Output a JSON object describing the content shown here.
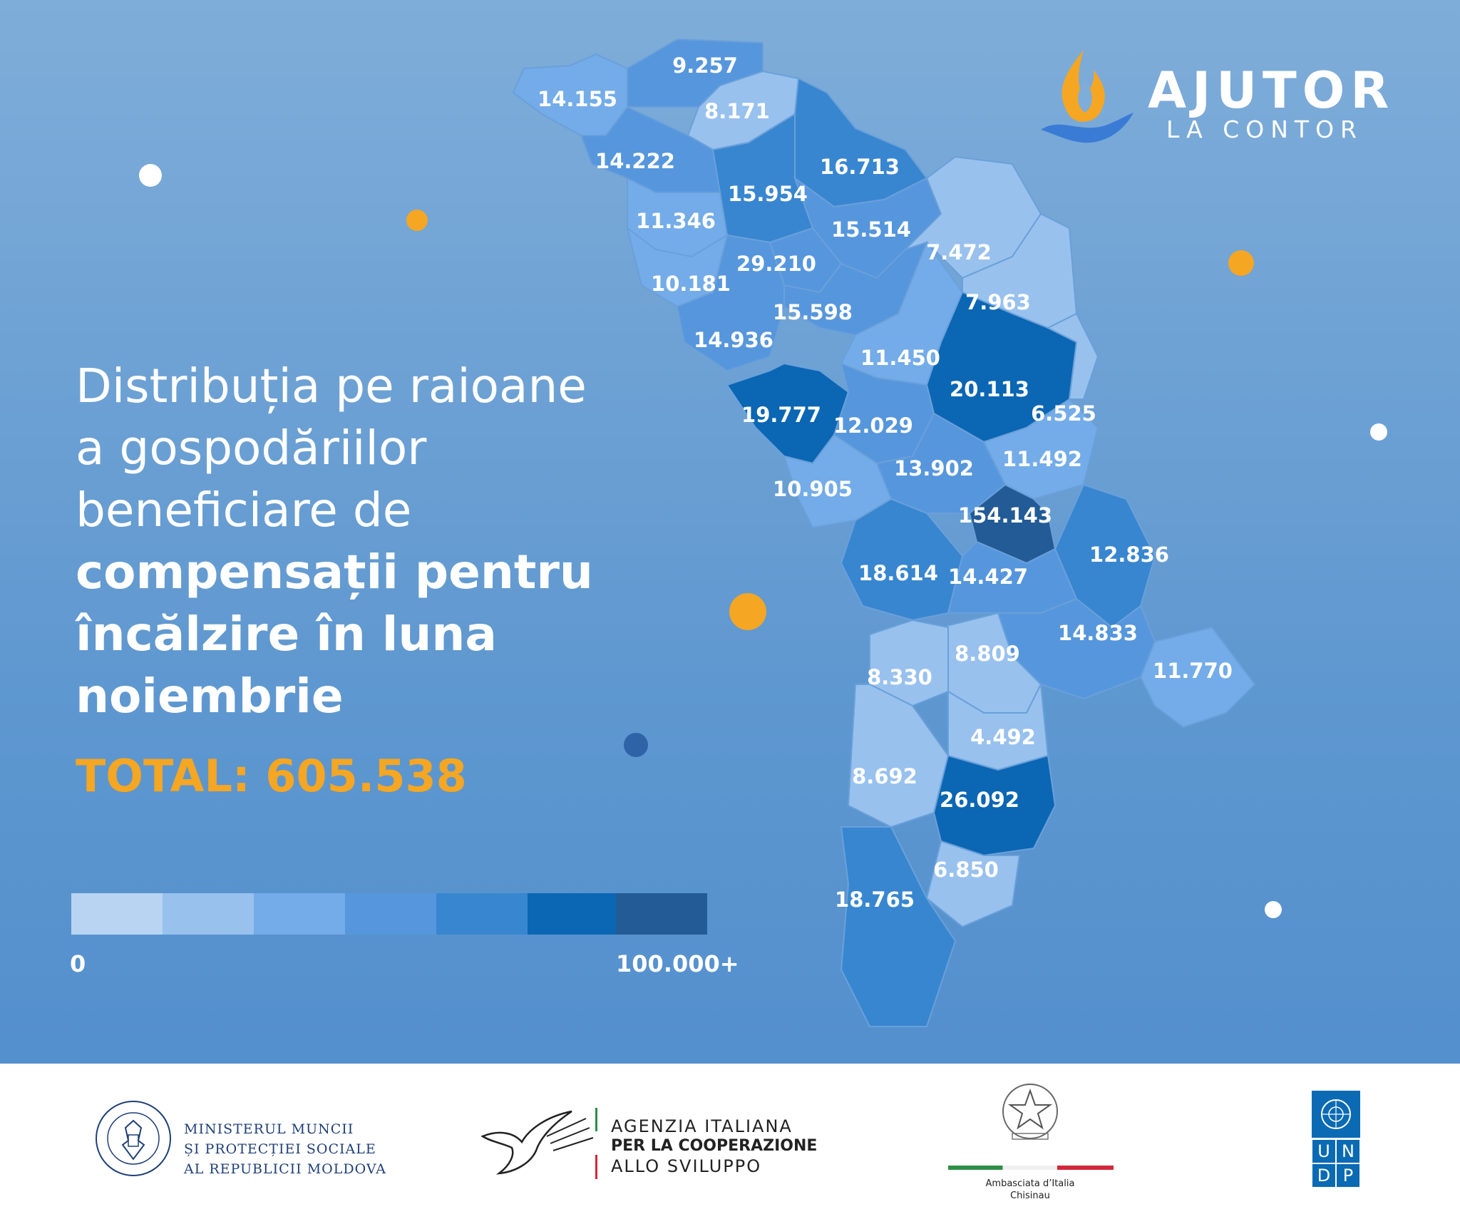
{
  "headline": {
    "lines": [
      "Distribuția pe raioane",
      "a gospodăriilor",
      "beneficiare de"
    ],
    "bold_lines": [
      "compensații pentru",
      "încălzire în luna",
      "noiembrie"
    ]
  },
  "total": "TOTAL: 605.538",
  "legend": {
    "min_label": "0",
    "max_label": "100.000+",
    "colors": [
      "#b8d4f2",
      "#98c1ee",
      "#73ace8",
      "#5696dc",
      "#3886d0",
      "#0b66b3",
      "#225b96"
    ]
  },
  "brand": {
    "name": "AJUTOR",
    "tagline": "LA CONTOR",
    "flame_color": "#f5a623",
    "hand_color": "#3a7bd5"
  },
  "regions": [
    {
      "label": "9.257",
      "level": 2
    },
    {
      "label": "14.155",
      "level": 3
    },
    {
      "label": "8.171",
      "level": 1
    },
    {
      "label": "14.222",
      "level": 3
    },
    {
      "label": "16.713",
      "level": 4
    },
    {
      "label": "15.954",
      "level": 4
    },
    {
      "label": "11.346",
      "level": 2
    },
    {
      "label": "15.514",
      "level": 3
    },
    {
      "label": "7.472",
      "level": 1
    },
    {
      "label": "29.210",
      "level": 3
    },
    {
      "label": "10.181",
      "level": 2
    },
    {
      "label": "7.963",
      "level": 1
    },
    {
      "label": "15.598",
      "level": 3
    },
    {
      "label": "14.936",
      "level": 3
    },
    {
      "label": "11.450",
      "level": 2
    },
    {
      "label": "20.113",
      "level": 5
    },
    {
      "label": "19.777",
      "level": 5
    },
    {
      "label": "12.029",
      "level": 3
    },
    {
      "label": "6.525",
      "level": 1
    },
    {
      "label": "11.492",
      "level": 2
    },
    {
      "label": "13.902",
      "level": 3
    },
    {
      "label": "10.905",
      "level": 2
    },
    {
      "label": "154.143",
      "level": 6
    },
    {
      "label": "12.836",
      "level": 4
    },
    {
      "label": "18.614",
      "level": 4
    },
    {
      "label": "14.427",
      "level": 3
    },
    {
      "label": "14.833",
      "level": 3
    },
    {
      "label": "8.809",
      "level": 1
    },
    {
      "label": "8.330",
      "level": 1
    },
    {
      "label": "11.770",
      "level": 2
    },
    {
      "label": "4.492",
      "level": 1
    },
    {
      "label": "8.692",
      "level": 1
    },
    {
      "label": "26.092",
      "level": 5
    },
    {
      "label": "6.850",
      "level": 1
    },
    {
      "label": "18.765",
      "level": 4
    }
  ],
  "footer": {
    "ministry": {
      "line1": "MINISTERUL MUNCII",
      "line2": "ȘI PROTECȚIEI SOCIALE",
      "line3": "AL REPUBLICII MOLDOVA"
    },
    "aics": {
      "line1": "AGENZIA ITALIANA",
      "line2": "PER LA COOPERAZIONE",
      "line3": "ALLO SVILUPPO"
    },
    "embassy": {
      "line1": "Ambasciata d’Italia",
      "line2": "Chisinau"
    },
    "undp": {
      "letters": [
        "U",
        "N",
        "D",
        "P"
      ]
    }
  }
}
